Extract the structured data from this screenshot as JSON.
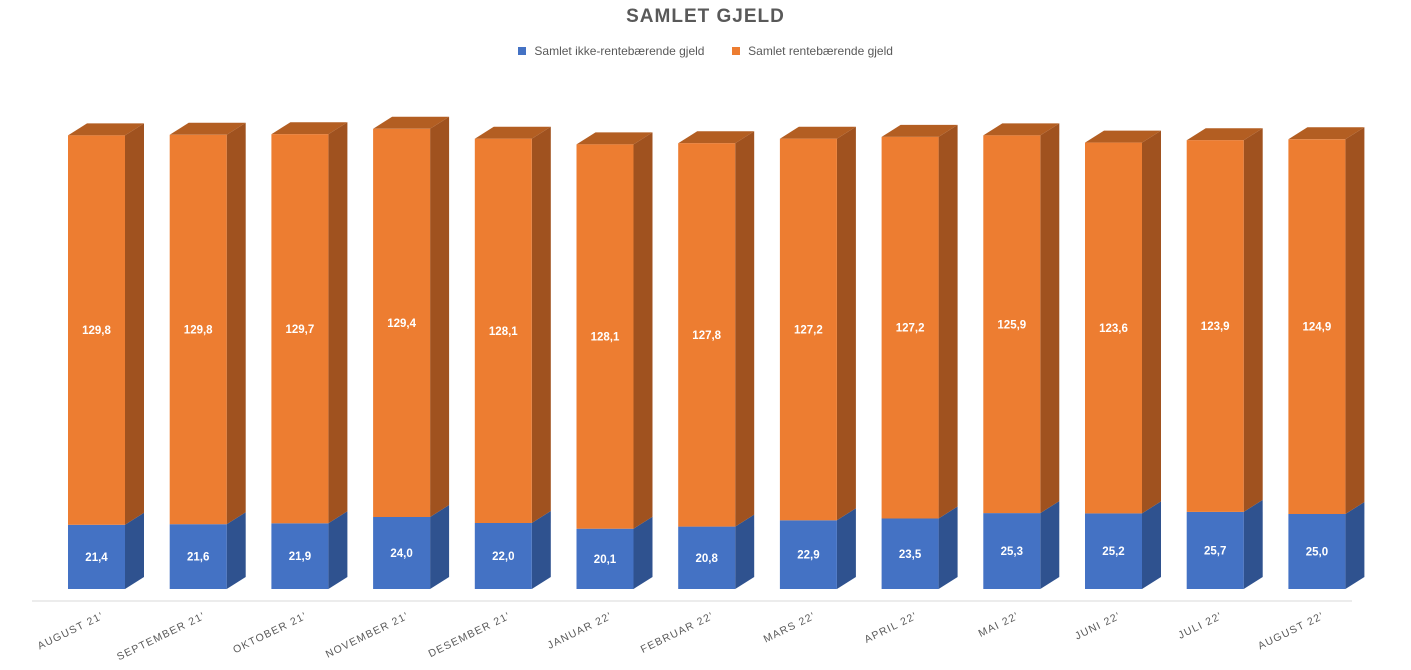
{
  "chart_data": {
    "type": "bar",
    "stacked": true,
    "title": "SAMLET GJELD",
    "categories": [
      "AUGUST 21'",
      "SEPTEMBER 21'",
      "OKTOBER 21'",
      "NOVEMBER 21'",
      "DESEMBER 21'",
      "JANUAR 22'",
      "FEBRUAR 22'",
      "MARS 22'",
      "APRIL 22'",
      "MAI 22'",
      "JUNI 22'",
      "JULI 22'",
      "AUGUST 22'"
    ],
    "series": [
      {
        "name": "Samlet ikke-rentebærende gjeld",
        "color": "#4472C4",
        "values": [
          21.4,
          21.6,
          21.9,
          24.0,
          22.0,
          20.1,
          20.8,
          22.9,
          23.5,
          25.3,
          25.2,
          25.7,
          25.0
        ],
        "labels": [
          "21,4",
          "21,6",
          "21,9",
          "24,0",
          "22,0",
          "20,1",
          "20,8",
          "22,9",
          "23,5",
          "25,3",
          "25,2",
          "25,7",
          "25,0"
        ]
      },
      {
        "name": "Samlet rentebærende gjeld",
        "color": "#ED7D31",
        "values": [
          129.8,
          129.8,
          129.7,
          129.4,
          128.1,
          128.1,
          127.8,
          127.2,
          127.2,
          125.9,
          123.6,
          123.9,
          124.9
        ],
        "labels": [
          "129,8",
          "129,8",
          "129,7",
          "129,4",
          "128,1",
          "128,1",
          "127,8",
          "127,2",
          "127,2",
          "125,9",
          "123,6",
          "123,9",
          "124,9"
        ]
      }
    ],
    "legend_position": "top",
    "grid": false
  }
}
